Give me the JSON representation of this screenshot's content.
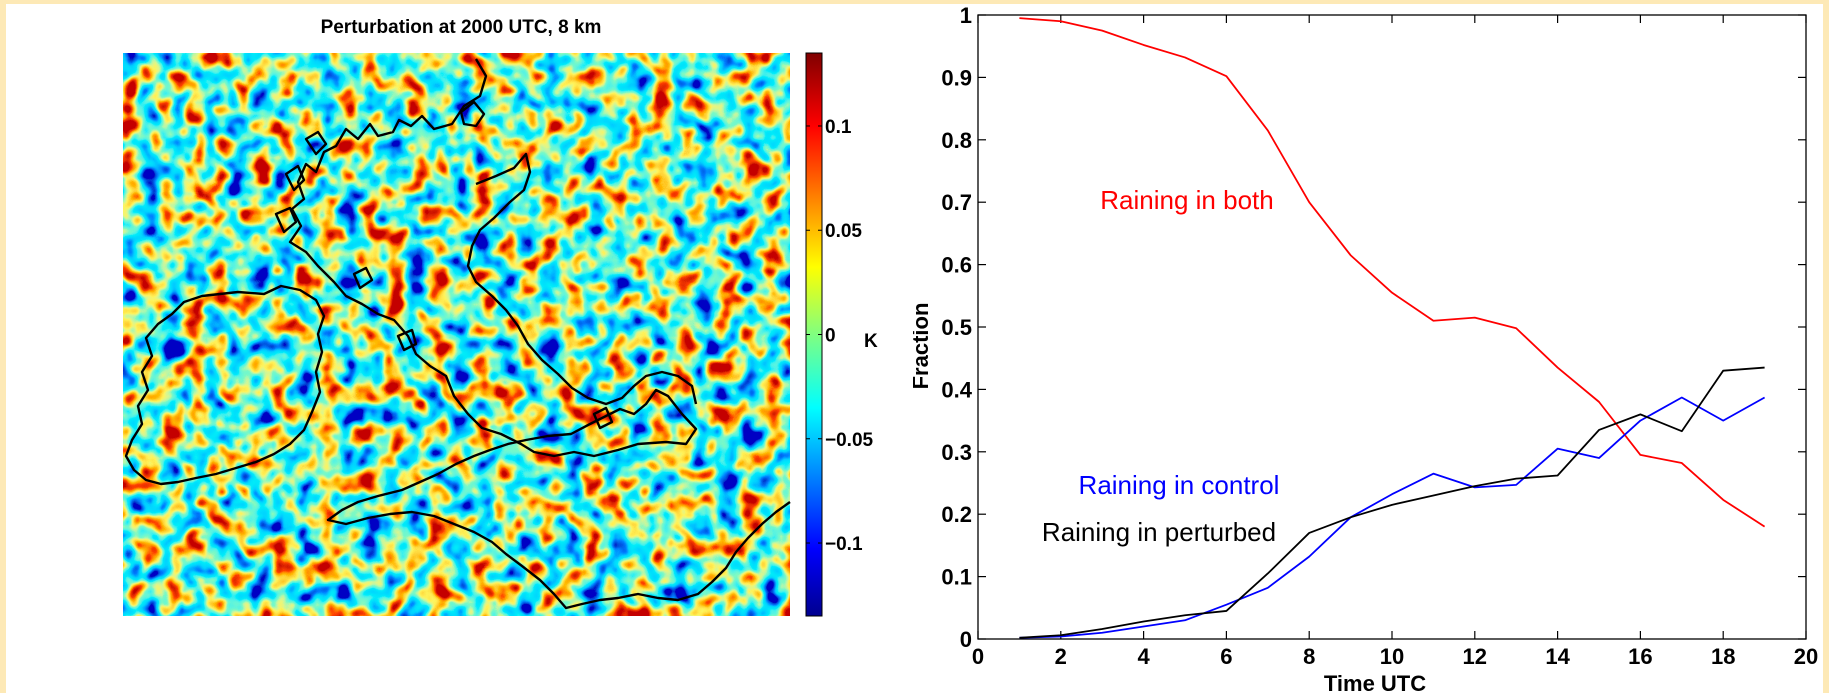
{
  "chart_data": [
    {
      "type": "heatmap",
      "title": "Perturbation at 2000 UTC, 8 km",
      "colorbar": {
        "ticks": [
          0.1,
          0.05,
          0,
          -0.05,
          -0.1
        ],
        "tick_labels": [
          "0.1",
          "0.05",
          "0",
          "−0.05",
          "−0.1"
        ],
        "unit": "K",
        "range": [
          -0.135,
          0.135
        ],
        "colormap": [
          "#00008f",
          "#0000ff",
          "#00ffff",
          "#ffff00",
          "#ff0000",
          "#800000"
        ]
      },
      "overlay": "coastline"
    },
    {
      "type": "line",
      "xlabel": "Time UTC",
      "ylabel": "Fraction",
      "xlim": [
        0,
        20
      ],
      "ylim": [
        0,
        1
      ],
      "xticks": [
        0,
        2,
        4,
        6,
        8,
        10,
        12,
        14,
        16,
        18,
        20
      ],
      "yticks": [
        0,
        0.1,
        0.2,
        0.3,
        0.4,
        0.5,
        0.6,
        0.7,
        0.8,
        0.9,
        1
      ],
      "ytick_labels": [
        "0",
        "0.1",
        "0.2",
        "0.3",
        "0.4",
        "0.5",
        "0.6",
        "0.7",
        "0.8",
        "0.9",
        "1"
      ],
      "grid": false,
      "x": [
        1,
        2,
        3,
        4,
        5,
        6,
        7,
        8,
        9,
        10,
        11,
        12,
        13,
        14,
        15,
        16,
        17,
        18,
        19
      ],
      "series": [
        {
          "name": "Raining in both",
          "color": "#ff0000",
          "values": [
            0.995,
            0.99,
            0.975,
            0.952,
            0.932,
            0.902,
            0.815,
            0.7,
            0.615,
            0.555,
            0.51,
            0.515,
            0.498,
            0.435,
            0.38,
            0.295,
            0.282,
            0.223,
            0.18
          ]
        },
        {
          "name": "Raining in control",
          "color": "#0000ff",
          "values": [
            0.002,
            0.004,
            0.01,
            0.02,
            0.03,
            0.055,
            0.082,
            0.132,
            0.195,
            0.232,
            0.265,
            0.243,
            0.247,
            0.305,
            0.29,
            0.35,
            0.387,
            0.35,
            0.387
          ]
        },
        {
          "name": "Raining in perturbed",
          "color": "#000000",
          "values": [
            0.002,
            0.006,
            0.016,
            0.028,
            0.038,
            0.045,
            0.105,
            0.17,
            0.195,
            0.215,
            0.23,
            0.245,
            0.257,
            0.262,
            0.335,
            0.36,
            0.333,
            0.43,
            0.435
          ]
        }
      ]
    }
  ]
}
